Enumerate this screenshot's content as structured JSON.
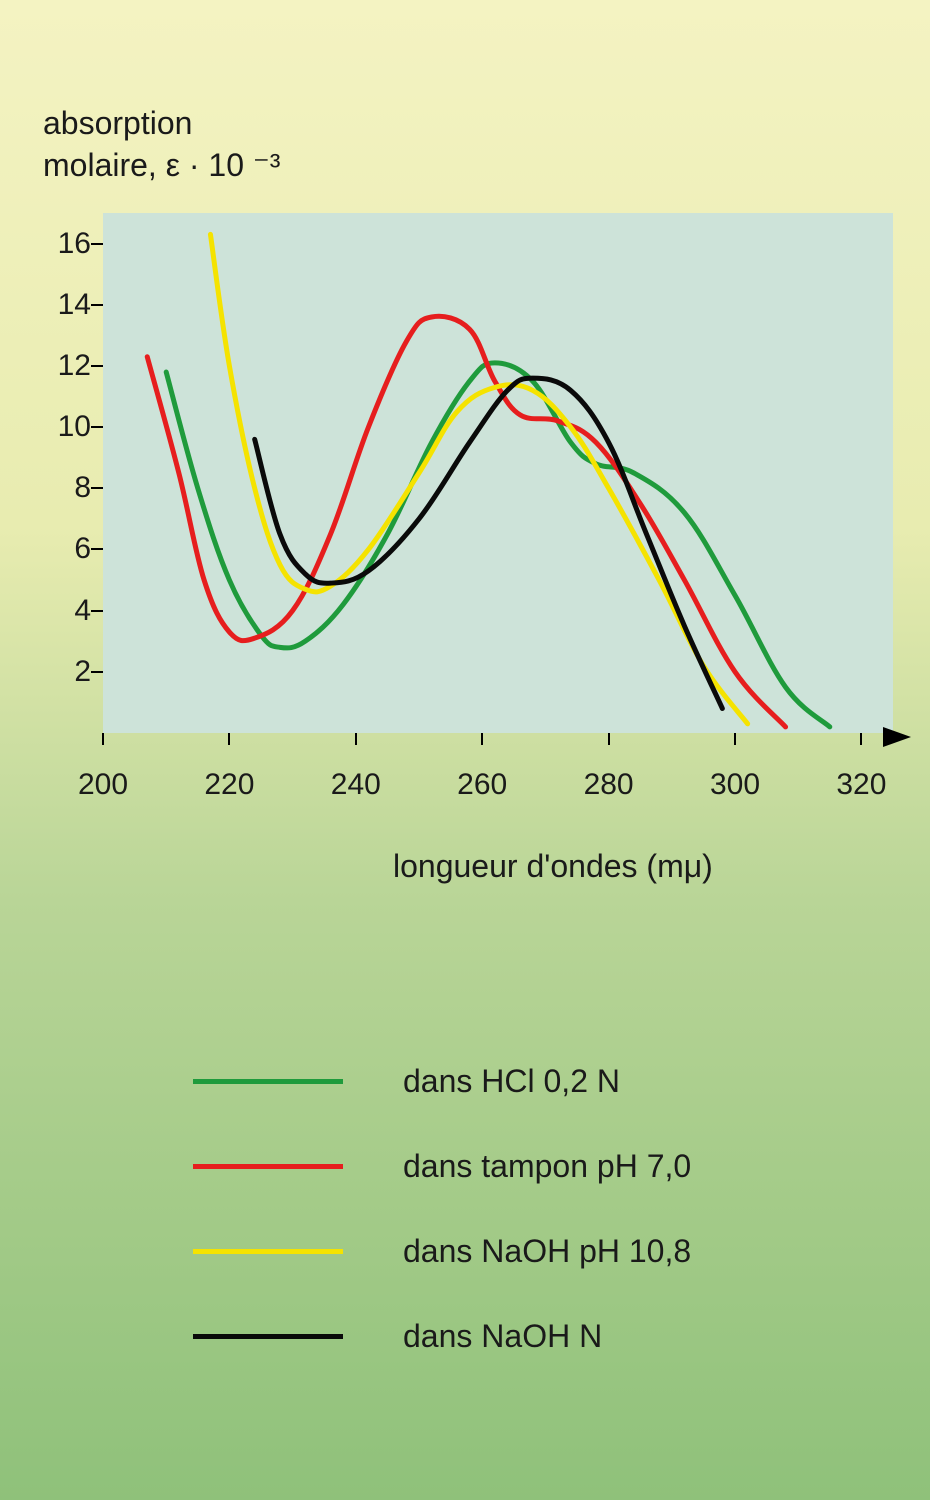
{
  "chart": {
    "type": "line",
    "ylabel_line1": "absorption",
    "ylabel_line2": "molaire, ε · 10 ⁻³",
    "xlabel": "longueur d'ondes (mμ)",
    "plot_bg": "#cde3d9",
    "xlim": [
      200,
      325
    ],
    "ylim": [
      0,
      17
    ],
    "y_ticks": [
      2,
      4,
      6,
      8,
      10,
      12,
      14,
      16
    ],
    "x_ticks": [
      200,
      220,
      240,
      260,
      280,
      300,
      320
    ],
    "line_width": 5,
    "font_size": 32,
    "tick_font_size": 30,
    "series": [
      {
        "name": "green",
        "color": "#1f9b3c",
        "label": "dans HCl 0,2  N",
        "points": [
          [
            210,
            11.8
          ],
          [
            215,
            8.0
          ],
          [
            220,
            5.0
          ],
          [
            225,
            3.2
          ],
          [
            228,
            2.8
          ],
          [
            232,
            3.0
          ],
          [
            238,
            4.2
          ],
          [
            245,
            6.5
          ],
          [
            252,
            9.5
          ],
          [
            258,
            11.5
          ],
          [
            262,
            12.1
          ],
          [
            268,
            11.5
          ],
          [
            274,
            9.5
          ],
          [
            278,
            8.8
          ],
          [
            284,
            8.5
          ],
          [
            292,
            7.2
          ],
          [
            300,
            4.5
          ],
          [
            308,
            1.5
          ],
          [
            315,
            0.2
          ]
        ]
      },
      {
        "name": "red",
        "color": "#e61e1e",
        "label": "dans tampon pH 7,0",
        "points": [
          [
            207,
            12.3
          ],
          [
            212,
            8.5
          ],
          [
            216,
            5.0
          ],
          [
            220,
            3.3
          ],
          [
            224,
            3.1
          ],
          [
            230,
            4.0
          ],
          [
            236,
            6.5
          ],
          [
            242,
            10.0
          ],
          [
            248,
            12.8
          ],
          [
            252,
            13.6
          ],
          [
            258,
            13.2
          ],
          [
            262,
            11.5
          ],
          [
            266,
            10.4
          ],
          [
            272,
            10.2
          ],
          [
            278,
            9.5
          ],
          [
            285,
            7.5
          ],
          [
            292,
            5.0
          ],
          [
            300,
            2.0
          ],
          [
            308,
            0.2
          ]
        ]
      },
      {
        "name": "yellow",
        "color": "#f5e300",
        "label": "dans NaOH pH 10,8",
        "points": [
          [
            217,
            16.3
          ],
          [
            220,
            12.0
          ],
          [
            224,
            8.0
          ],
          [
            228,
            5.5
          ],
          [
            232,
            4.7
          ],
          [
            236,
            4.8
          ],
          [
            242,
            6.0
          ],
          [
            250,
            8.5
          ],
          [
            256,
            10.5
          ],
          [
            262,
            11.3
          ],
          [
            268,
            11.2
          ],
          [
            274,
            10.0
          ],
          [
            280,
            8.0
          ],
          [
            288,
            5.0
          ],
          [
            295,
            2.2
          ],
          [
            302,
            0.3
          ]
        ]
      },
      {
        "name": "black",
        "color": "#0a0a0a",
        "label": "dans NaOH  N",
        "points": [
          [
            224,
            9.6
          ],
          [
            228,
            6.5
          ],
          [
            232,
            5.2
          ],
          [
            236,
            4.9
          ],
          [
            242,
            5.3
          ],
          [
            250,
            7.0
          ],
          [
            258,
            9.5
          ],
          [
            264,
            11.2
          ],
          [
            268,
            11.6
          ],
          [
            274,
            11.2
          ],
          [
            280,
            9.5
          ],
          [
            286,
            6.5
          ],
          [
            292,
            3.5
          ],
          [
            298,
            0.8
          ]
        ]
      }
    ]
  },
  "legend": {
    "items": [
      {
        "color": "#1f9b3c",
        "label": "dans HCl 0,2  N"
      },
      {
        "color": "#e61e1e",
        "label": "dans tampon pH 7,0"
      },
      {
        "color": "#f5e300",
        "label": "dans NaOH pH 10,8"
      },
      {
        "color": "#0a0a0a",
        "label": "dans NaOH  N"
      }
    ]
  }
}
